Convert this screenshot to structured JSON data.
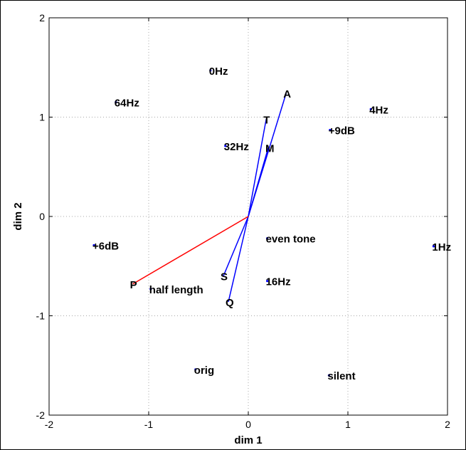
{
  "chart_data": {
    "type": "scatter",
    "xlabel": "dim 1",
    "ylabel": "dim 2",
    "xlim": [
      -2,
      2
    ],
    "ylim": [
      -2,
      2
    ],
    "xticks": [
      "-2",
      "-1",
      "0",
      "1",
      "2"
    ],
    "yticks": [
      "-2",
      "-1",
      "0",
      "1",
      "2"
    ],
    "grid": true,
    "points": [
      {
        "label": "0Hz",
        "x": -0.38,
        "y": 1.47
      },
      {
        "label": "64Hz",
        "x": -1.33,
        "y": 1.15
      },
      {
        "label": "4Hz",
        "x": 1.23,
        "y": 1.08
      },
      {
        "label": "+9dB",
        "x": 0.82,
        "y": 0.87
      },
      {
        "label": "32Hz",
        "x": -0.23,
        "y": 0.71
      },
      {
        "label": "+6dB",
        "x": -1.55,
        "y": -0.29
      },
      {
        "label": "even tone",
        "x": 0.19,
        "y": -0.22
      },
      {
        "label": "1Hz",
        "x": 1.86,
        "y": -0.3
      },
      {
        "label": "16Hz",
        "x": 0.19,
        "y": -0.65
      },
      {
        "label": "half length",
        "x": -0.98,
        "y": -0.73
      },
      {
        "label": "orig",
        "x": -0.53,
        "y": -1.54
      },
      {
        "label": "silent",
        "x": 0.81,
        "y": -1.6
      }
    ],
    "vectors": [
      {
        "label": "A",
        "x": 0.38,
        "y": 1.24,
        "color": "#0000ff"
      },
      {
        "label": "T",
        "x": 0.18,
        "y": 0.98,
        "color": "#0000ff"
      },
      {
        "label": "M",
        "x": 0.2,
        "y": 0.69,
        "color": "#0000ff"
      },
      {
        "label": "S",
        "x": -0.25,
        "y": -0.6,
        "color": "#0000ff"
      },
      {
        "label": "Q",
        "x": -0.2,
        "y": -0.86,
        "color": "#0000ff"
      },
      {
        "label": "P",
        "x": -1.16,
        "y": -0.68,
        "color": "#ff0000"
      }
    ]
  }
}
